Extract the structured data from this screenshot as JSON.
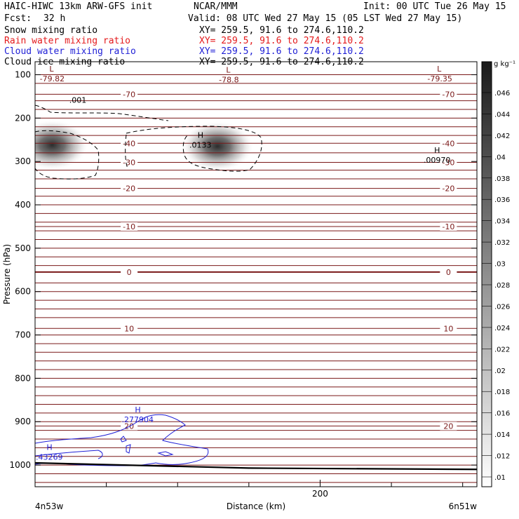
{
  "header": {
    "model": "HAIC-HIWC 13km ARW-GFS init",
    "org": "NCAR/MMM",
    "init": "Init: 00 UTC Tue 26 May 15",
    "fcst_label": "Fcst:",
    "fcst_value": "32 h",
    "valid": "Valid: 08 UTC Wed 27 May 15 (05 LST Wed 27 May 15)"
  },
  "fields": [
    {
      "name": "Snow mixing ratio",
      "xy": "XY= 259.5, 91.6 to 274.6,110.2",
      "color": "#000000"
    },
    {
      "name": "Rain water mixing ratio",
      "xy": "XY= 259.5, 91.6 to 274.6,110.2",
      "color": "#e41a1c"
    },
    {
      "name": "Cloud water mixing ratio",
      "xy": "XY= 259.5, 91.6 to 274.6,110.2",
      "color": "#1f1fd6"
    },
    {
      "name": "Cloud ice mixing ratio",
      "xy": "XY= 259.5, 91.6 to 274.6,110.2",
      "color": "#000000"
    }
  ],
  "chart_data": {
    "type": "heatmap",
    "xlabel": "Distance (km)",
    "ylabel": "Pressure (hPa)",
    "xlim": [
      0,
      310
    ],
    "ylim": [
      1050,
      70
    ],
    "x_ticks": [
      200
    ],
    "x_minor_step": 50,
    "y_ticks": [
      100,
      200,
      300,
      400,
      500,
      600,
      700,
      800,
      900,
      1000
    ],
    "x_endpoint_labels": [
      "4n53w",
      "6n51w"
    ],
    "colorbar": {
      "unit": "g kg⁻¹",
      "ticks": [
        ".046",
        ".044",
        ".042",
        ".04",
        ".038",
        ".036",
        ".034",
        ".032",
        ".03",
        ".028",
        ".026",
        ".024",
        ".022",
        ".02",
        ".018",
        ".016",
        ".014",
        ".012",
        ".01"
      ]
    },
    "temperature_contours": [
      {
        "label": "-70",
        "p": 145
      },
      {
        "label": "-40",
        "p": 258
      },
      {
        "label": "-30",
        "p": 302
      },
      {
        "label": "-20",
        "p": 362
      },
      {
        "label": "-10",
        "p": 450
      },
      {
        "label": "0",
        "p": 555
      },
      {
        "label": "10",
        "p": 685
      },
      {
        "label": "20",
        "p": 910
      }
    ],
    "extremes": [
      {
        "type": "L",
        "value": "-79.82",
        "x": 12,
        "p": 102
      },
      {
        "type": "L",
        "value": "-78.8",
        "x": 136,
        "p": 105
      },
      {
        "type": "L",
        "value": "-79.35",
        "x": 284,
        "p": 102
      },
      {
        "type": "H",
        "value": ".0133",
        "x": 116,
        "p": 255
      },
      {
        "type": "H",
        "value": ".00970",
        "x": 282,
        "p": 290
      },
      {
        "type": "H",
        "value": ".277904",
        "x": 72,
        "p": 888
      },
      {
        "type": "H",
        "value": ".43269",
        "x": 10,
        "p": 975
      }
    ],
    "contour_labels": [
      {
        "label": ".001",
        "x": 30,
        "p": 165
      }
    ],
    "shaded_maxima": [
      {
        "x": 12,
        "p": 262,
        "value": 0.045
      },
      {
        "x": 128,
        "p": 265,
        "value": 0.046
      }
    ],
    "terrain": [
      [
        0,
        995
      ],
      [
        150,
        1007
      ],
      [
        310,
        1010
      ]
    ]
  }
}
